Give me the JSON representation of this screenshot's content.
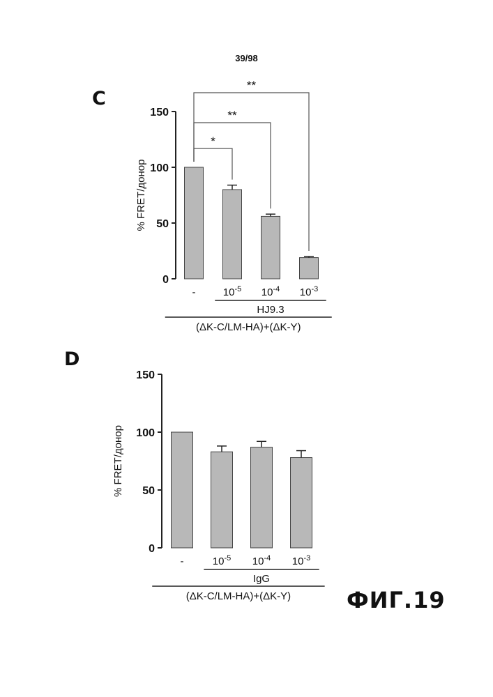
{
  "page": {
    "number": "39/98",
    "figure_label": "ФИГ.19"
  },
  "chart_data": [
    {
      "panel": "C",
      "type": "bar",
      "ylabel": "% FRET/донор",
      "ylim": [
        0,
        150
      ],
      "yticks": [
        0,
        50,
        100,
        150
      ],
      "categories": [
        "-",
        "10^-5",
        "10^-4",
        "10^-3"
      ],
      "category_labels": [
        {
          "base": "-",
          "exp": ""
        },
        {
          "base": "10",
          "exp": "-5"
        },
        {
          "base": "10",
          "exp": "-4"
        },
        {
          "base": "10",
          "exp": "-3"
        }
      ],
      "values": [
        100,
        80,
        56,
        19
      ],
      "errors": [
        0,
        4,
        2,
        1
      ],
      "bar_color": "#b8b8b8",
      "treatment_label": "HJ9.3",
      "group_label": "(ΔK-C/LM-HA)+(ΔK-Y)",
      "significance": [
        {
          "from": 0,
          "to": 1,
          "label": "*"
        },
        {
          "from": 0,
          "to": 2,
          "label": "**"
        },
        {
          "from": 0,
          "to": 3,
          "label": "**"
        }
      ]
    },
    {
      "panel": "D",
      "type": "bar",
      "ylabel": "% FRET/донор",
      "ylim": [
        0,
        150
      ],
      "yticks": [
        0,
        50,
        100,
        150
      ],
      "categories": [
        "-",
        "10^-5",
        "10^-4",
        "10^-3"
      ],
      "category_labels": [
        {
          "base": "-",
          "exp": ""
        },
        {
          "base": "10",
          "exp": "-5"
        },
        {
          "base": "10",
          "exp": "-4"
        },
        {
          "base": "10",
          "exp": "-3"
        }
      ],
      "values": [
        100,
        83,
        87,
        78
      ],
      "errors": [
        0,
        5,
        5,
        6
      ],
      "bar_color": "#b8b8b8",
      "treatment_label": "IgG",
      "group_label": "(ΔK-C/LM-HA)+(ΔK-Y)",
      "significance": []
    }
  ]
}
